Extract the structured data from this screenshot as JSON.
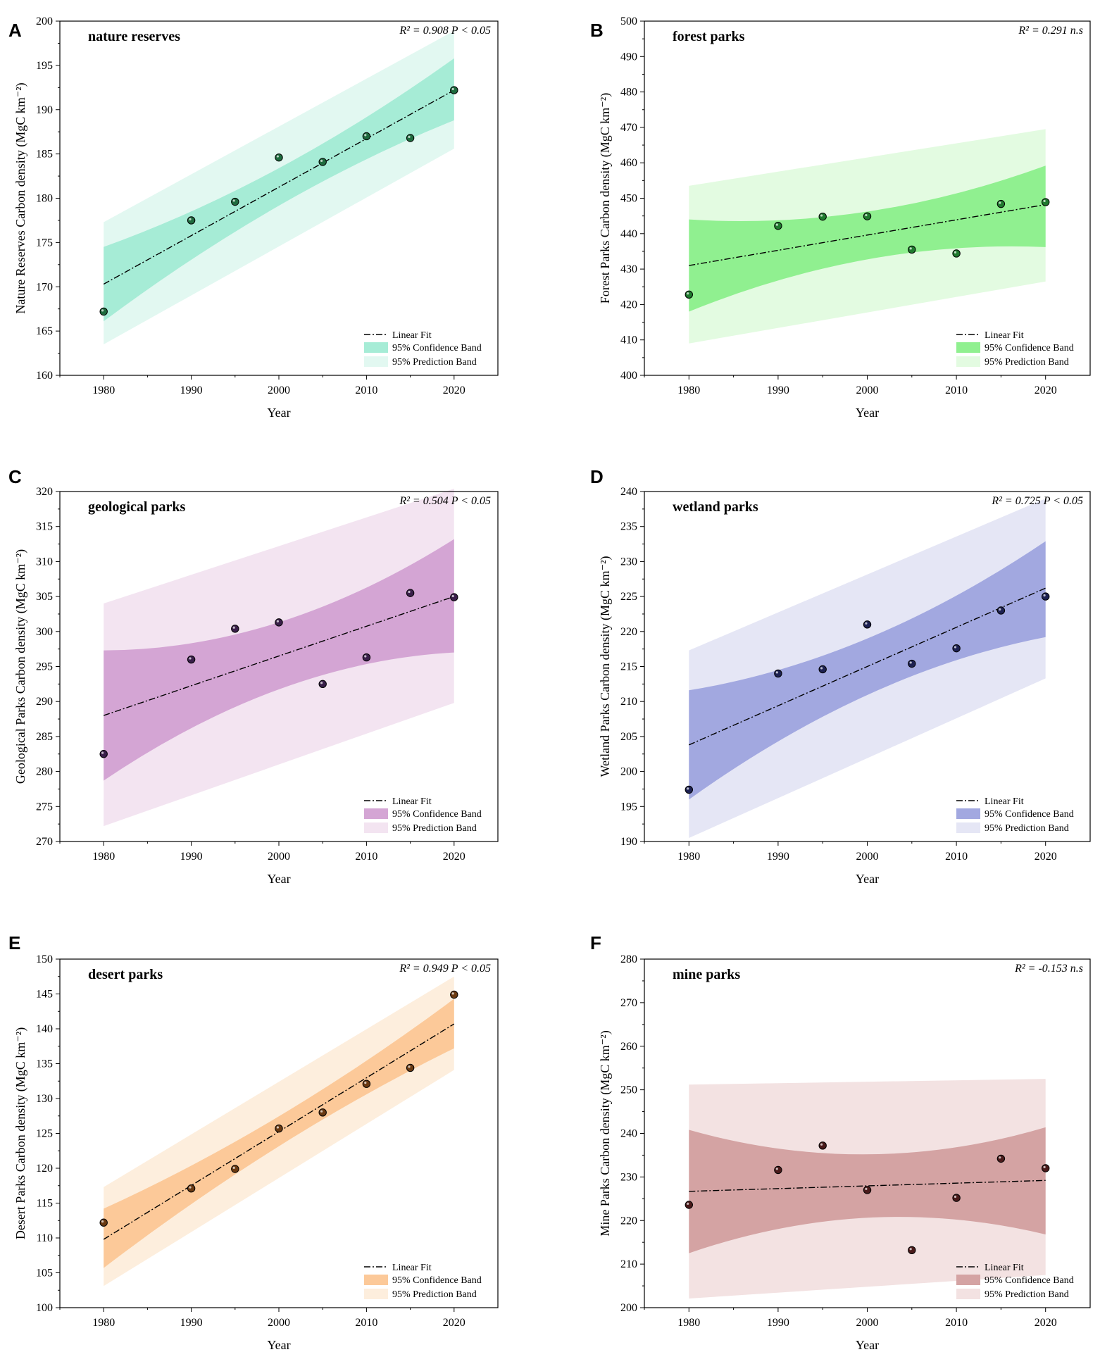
{
  "chart_data": [
    {
      "panel": "A",
      "type": "scatter",
      "title": "nature reserves",
      "xlabel": "Year",
      "ylabel": "Nature Reserves Carbon density (MgC km⁻²)",
      "ylim": [
        160,
        200
      ],
      "yticks": [
        160,
        165,
        170,
        175,
        180,
        185,
        190,
        195,
        200
      ],
      "xlim": [
        1975,
        2025
      ],
      "xticks": [
        1980,
        1990,
        2000,
        2010,
        2020
      ],
      "x": [
        1980,
        1990,
        1995,
        2000,
        2005,
        2010,
        2015,
        2020
      ],
      "y": [
        167.2,
        177.5,
        179.6,
        184.6,
        184.1,
        187.0,
        186.8,
        192.2
      ],
      "fit": [
        170.3,
        192.2
      ],
      "conf_low": [
        166.1,
        188.8
      ],
      "conf_high": [
        174.5,
        195.8
      ],
      "pred_low": [
        163.5,
        185.6
      ],
      "pred_high": [
        177.3,
        198.9
      ],
      "stat": "R² = 0.908  P < 0.05",
      "colors": {
        "conf": "#a6ecd6",
        "pred": "#e2f8f1",
        "point": "#1e6b3e"
      },
      "legend": [
        "Linear Fit",
        "95% Confidence Band",
        "95% Prediction Band"
      ]
    },
    {
      "panel": "B",
      "type": "scatter",
      "title": "forest parks",
      "xlabel": "Year",
      "ylabel": "Forest Parks Carbon density (MgC km⁻²)",
      "ylim": [
        400,
        500
      ],
      "yticks": [
        400,
        410,
        420,
        430,
        440,
        450,
        460,
        470,
        480,
        490,
        500
      ],
      "xlim": [
        1975,
        2025
      ],
      "xticks": [
        1980,
        1990,
        2000,
        2010,
        2020
      ],
      "x": [
        1980,
        1990,
        1995,
        2000,
        2005,
        2010,
        2015,
        2020
      ],
      "y": [
        422.8,
        442.2,
        444.8,
        444.9,
        435.5,
        434.4,
        448.4,
        448.9
      ],
      "fit": [
        431.0,
        448.2
      ],
      "conf_low": [
        418.0,
        436.2
      ],
      "conf_high": [
        444.0,
        459.2
      ],
      "pred_low": [
        409.0,
        426.5
      ],
      "pred_high": [
        453.5,
        469.5
      ],
      "stat": "R² = 0.291  n.s",
      "colors": {
        "conf": "#90f090",
        "pred": "#e3fbe1",
        "point": "#1f7a2e"
      },
      "legend": [
        "Linear Fit",
        "95% Confidence Band",
        "95% Prediction Band"
      ]
    },
    {
      "panel": "C",
      "type": "scatter",
      "title": "geological parks",
      "xlabel": "Year",
      "ylabel": "Geological Parks Carbon density (MgC km⁻²)",
      "ylim": [
        270,
        320
      ],
      "yticks": [
        270,
        275,
        280,
        285,
        290,
        295,
        300,
        305,
        310,
        315,
        320
      ],
      "xlim": [
        1975,
        2025
      ],
      "xticks": [
        1980,
        1990,
        2000,
        2010,
        2020
      ],
      "x": [
        1980,
        1990,
        1995,
        2000,
        2005,
        2010,
        2015,
        2020
      ],
      "y": [
        282.5,
        296.0,
        300.4,
        301.3,
        292.5,
        296.3,
        305.5,
        304.9
      ],
      "fit": [
        288.0,
        305.0
      ],
      "conf_low": [
        278.7,
        297.0
      ],
      "conf_high": [
        297.3,
        313.2
      ],
      "pred_low": [
        272.2,
        289.8
      ],
      "pred_high": [
        304.0,
        320.4
      ],
      "stat": "R² = 0.504  P < 0.05",
      "colors": {
        "conf": "#d4a5d4",
        "pred": "#f3e4f1",
        "point": "#3a1f4a"
      },
      "legend": [
        "Linear Fit",
        "95% Confidence Band",
        "95% Prediction Band"
      ]
    },
    {
      "panel": "D",
      "type": "scatter",
      "title": "wetland parks",
      "xlabel": "Year",
      "ylabel": "Wetland Parks Carbon density (MgC km⁻²)",
      "ylim": [
        190,
        240
      ],
      "yticks": [
        190,
        195,
        200,
        205,
        210,
        215,
        220,
        225,
        230,
        235,
        240
      ],
      "xlim": [
        1975,
        2025
      ],
      "xticks": [
        1980,
        1990,
        2000,
        2010,
        2020
      ],
      "x": [
        1980,
        1990,
        1995,
        2000,
        2005,
        2010,
        2015,
        2020
      ],
      "y": [
        197.4,
        214.0,
        214.6,
        221.0,
        215.4,
        217.6,
        223.0,
        225.0
      ],
      "fit": [
        203.8,
        226.2
      ],
      "conf_low": [
        196.0,
        219.2
      ],
      "conf_high": [
        211.6,
        232.9
      ],
      "pred_low": [
        190.5,
        213.3
      ],
      "pred_high": [
        217.3,
        239.0
      ],
      "stat": "R² = 0.725  P < 0.05",
      "colors": {
        "conf": "#a2a8e0",
        "pred": "#e5e6f5",
        "point": "#1d2152"
      },
      "legend": [
        "Linear Fit",
        "95% Confidence Band",
        "95% Prediction Band"
      ]
    },
    {
      "panel": "E",
      "type": "scatter",
      "title": "desert parks",
      "xlabel": "Year",
      "ylabel": "Desert Parks Carbon density (MgC km⁻²)",
      "ylim": [
        100,
        150
      ],
      "yticks": [
        100,
        105,
        110,
        115,
        120,
        125,
        130,
        135,
        140,
        145,
        150
      ],
      "xlim": [
        1975,
        2025
      ],
      "xticks": [
        1980,
        1990,
        2000,
        2010,
        2020
      ],
      "x": [
        1980,
        1990,
        1995,
        2000,
        2005,
        2010,
        2015,
        2020
      ],
      "y": [
        112.2,
        117.1,
        119.9,
        125.7,
        128.0,
        132.1,
        134.4,
        144.9
      ],
      "fit": [
        109.8,
        140.7
      ],
      "conf_low": [
        105.7,
        137.2
      ],
      "conf_high": [
        114.2,
        144.3
      ],
      "pred_low": [
        103.1,
        134.1
      ],
      "pred_high": [
        117.3,
        147.5
      ],
      "stat": "R² = 0.949  P < 0.05",
      "colors": {
        "conf": "#fcc999",
        "pred": "#fdeedd",
        "point": "#6b3a12"
      },
      "legend": [
        "Linear Fit",
        "95% Confidence Band",
        "95% Prediction Band"
      ]
    },
    {
      "panel": "F",
      "type": "scatter",
      "title": "mine parks",
      "xlabel": "Year",
      "ylabel": "Mine Parks Carbon density (MgC km⁻²)",
      "ylim": [
        200,
        280
      ],
      "yticks": [
        200,
        210,
        220,
        230,
        240,
        250,
        260,
        270,
        280
      ],
      "xlim": [
        1975,
        2025
      ],
      "xticks": [
        1980,
        1990,
        2000,
        2010,
        2020
      ],
      "x": [
        1980,
        1990,
        1995,
        2000,
        2005,
        2010,
        2015,
        2020
      ],
      "y": [
        223.6,
        231.6,
        237.2,
        227.0,
        213.2,
        225.2,
        234.2,
        232.0
      ],
      "fit": [
        226.7,
        229.2
      ],
      "conf_low": [
        212.5,
        216.8
      ],
      "conf_high": [
        240.8,
        241.4
      ],
      "pred_low": [
        202.1,
        207.5
      ],
      "pred_high": [
        251.2,
        252.5
      ],
      "stat": "R² = -0.153  n.s",
      "colors": {
        "conf": "#d4a3a3",
        "pred": "#f3e2e2",
        "point": "#4a1a1a"
      },
      "legend": [
        "Linear Fit",
        "95% Confidence Band",
        "95% Prediction Band"
      ]
    }
  ]
}
